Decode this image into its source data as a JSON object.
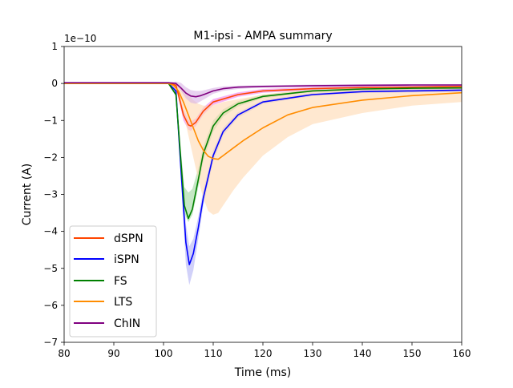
{
  "chart_data": {
    "type": "line",
    "title": "M1-ipsi - AMPA summary",
    "xlabel": "Time (ms)",
    "ylabel": "Current (A)",
    "y_offset_text": "1e−10",
    "xlim": [
      80,
      160
    ],
    "ylim": [
      -7,
      1
    ],
    "y_scale": 1e-10,
    "x_ticks": [
      80,
      90,
      100,
      110,
      120,
      130,
      140,
      150,
      160
    ],
    "y_ticks": [
      1,
      0,
      -1,
      -2,
      -3,
      -4,
      -5,
      -6,
      -7
    ],
    "x_tick_labels": [
      "80",
      "90",
      "100",
      "110",
      "120",
      "130",
      "140",
      "150",
      "160"
    ],
    "y_tick_labels": [
      "1",
      "0",
      "−1",
      "−2",
      "−3",
      "−4",
      "−5",
      "−6",
      "−7"
    ],
    "grid": false,
    "legend_position": "lower-left",
    "series": [
      {
        "name": "dSPN",
        "color": "#ff4500",
        "band_color": "#ee82ee",
        "x": [
          80,
          101,
          102.5,
          103,
          104,
          105,
          105.5,
          106.5,
          108,
          110,
          115,
          120,
          130,
          140,
          150,
          160
        ],
        "y": [
          0.01,
          0.01,
          -0.05,
          -0.3,
          -0.85,
          -1.12,
          -1.15,
          -1.05,
          -0.75,
          -0.5,
          -0.3,
          -0.2,
          -0.14,
          -0.11,
          -0.1,
          -0.08
        ],
        "lower": [
          0.01,
          0.0,
          -0.1,
          -0.4,
          -1.0,
          -1.25,
          -1.28,
          -1.15,
          -0.85,
          -0.58,
          -0.36,
          -0.25,
          -0.18,
          -0.15,
          -0.13,
          -0.12
        ],
        "upper": [
          0.01,
          0.02,
          0.0,
          -0.2,
          -0.7,
          -0.98,
          -1.02,
          -0.95,
          -0.65,
          -0.42,
          -0.24,
          -0.15,
          -0.1,
          -0.07,
          -0.06,
          -0.05
        ]
      },
      {
        "name": "iSPN",
        "color": "#0000ff",
        "band_color": "#b3b3f5",
        "x": [
          80,
          101,
          102.5,
          103.5,
          104.5,
          105.2,
          106,
          107,
          108,
          110,
          112,
          115,
          120,
          130,
          140,
          150,
          160
        ],
        "y": [
          0.0,
          0.0,
          -0.2,
          -2.3,
          -4.3,
          -4.9,
          -4.6,
          -3.9,
          -3.1,
          -1.95,
          -1.3,
          -0.85,
          -0.5,
          -0.3,
          -0.22,
          -0.2,
          -0.18
        ],
        "lower": [
          0.0,
          -0.02,
          -0.3,
          -2.6,
          -4.9,
          -5.45,
          -5.05,
          -4.2,
          -3.3,
          -2.1,
          -1.4,
          -0.92,
          -0.55,
          -0.34,
          -0.26,
          -0.24,
          -0.22
        ],
        "upper": [
          0.0,
          0.02,
          -0.1,
          -2.0,
          -3.8,
          -4.4,
          -4.2,
          -3.6,
          -2.9,
          -1.8,
          -1.2,
          -0.78,
          -0.45,
          -0.26,
          -0.18,
          -0.16,
          -0.14
        ]
      },
      {
        "name": "FS",
        "color": "#008000",
        "band_color": "#9fd89f",
        "x": [
          80,
          101,
          102.5,
          103.5,
          104.2,
          105,
          105.8,
          107,
          108,
          110,
          112,
          115,
          120,
          130,
          140,
          150,
          160
        ],
        "y": [
          0.0,
          0.0,
          -0.3,
          -2.1,
          -3.3,
          -3.65,
          -3.4,
          -2.6,
          -1.9,
          -1.15,
          -0.8,
          -0.55,
          -0.35,
          -0.2,
          -0.15,
          -0.13,
          -0.12
        ],
        "lower": [
          0.0,
          -0.02,
          -0.35,
          -2.3,
          -3.5,
          -3.75,
          -3.55,
          -2.8,
          -2.1,
          -1.3,
          -0.9,
          -0.62,
          -0.4,
          -0.23,
          -0.18,
          -0.16,
          -0.15
        ],
        "upper": [
          0.0,
          0.02,
          -0.2,
          -1.8,
          -2.8,
          -2.95,
          -2.85,
          -2.3,
          -1.7,
          -1.0,
          -0.7,
          -0.48,
          -0.3,
          -0.17,
          -0.12,
          -0.1,
          -0.09
        ]
      },
      {
        "name": "LTS",
        "color": "#ff8c00",
        "band_color": "#ffd9b0",
        "x": [
          80,
          101,
          102,
          103,
          104,
          105,
          106,
          107,
          108,
          109,
          110,
          111,
          112,
          114,
          116,
          120,
          125,
          130,
          140,
          150,
          160
        ],
        "y": [
          0.0,
          0.0,
          -0.05,
          -0.2,
          -0.5,
          -0.85,
          -1.2,
          -1.55,
          -1.8,
          -1.97,
          -2.03,
          -2.05,
          -1.95,
          -1.75,
          -1.55,
          -1.2,
          -0.85,
          -0.65,
          -0.45,
          -0.33,
          -0.25
        ],
        "lower": [
          0.0,
          -0.02,
          -0.1,
          -0.35,
          -0.8,
          -1.4,
          -2.0,
          -2.6,
          -3.1,
          -3.45,
          -3.55,
          -3.5,
          -3.3,
          -2.9,
          -2.55,
          -1.95,
          -1.45,
          -1.1,
          -0.8,
          -0.6,
          -0.5
        ],
        "upper": [
          0.0,
          0.02,
          0.0,
          -0.1,
          -0.2,
          -0.3,
          -0.45,
          -0.55,
          -0.6,
          -0.6,
          -0.58,
          -0.55,
          -0.5,
          -0.45,
          -0.4,
          -0.3,
          -0.22,
          -0.17,
          -0.12,
          -0.09,
          -0.07
        ]
      },
      {
        "name": "ChIN",
        "color": "#800080",
        "band_color": "#d9b3e6",
        "x": [
          80,
          101,
          102.5,
          103.5,
          104.5,
          105.5,
          106.5,
          107.5,
          108.5,
          110,
          112,
          115,
          120,
          130,
          140,
          150,
          160
        ],
        "y": [
          0.02,
          0.02,
          0.0,
          -0.12,
          -0.26,
          -0.34,
          -0.36,
          -0.33,
          -0.28,
          -0.2,
          -0.14,
          -0.1,
          -0.08,
          -0.06,
          -0.05,
          -0.04,
          -0.04
        ],
        "lower": [
          0.02,
          0.01,
          -0.05,
          -0.2,
          -0.4,
          -0.52,
          -0.55,
          -0.48,
          -0.4,
          -0.28,
          -0.2,
          -0.15,
          -0.11,
          -0.09,
          -0.08,
          -0.07,
          -0.07
        ],
        "upper": [
          0.02,
          0.03,
          0.05,
          0.02,
          -0.1,
          -0.18,
          -0.2,
          -0.2,
          -0.17,
          -0.12,
          -0.08,
          -0.06,
          -0.05,
          -0.03,
          -0.02,
          -0.02,
          -0.02
        ]
      }
    ]
  }
}
